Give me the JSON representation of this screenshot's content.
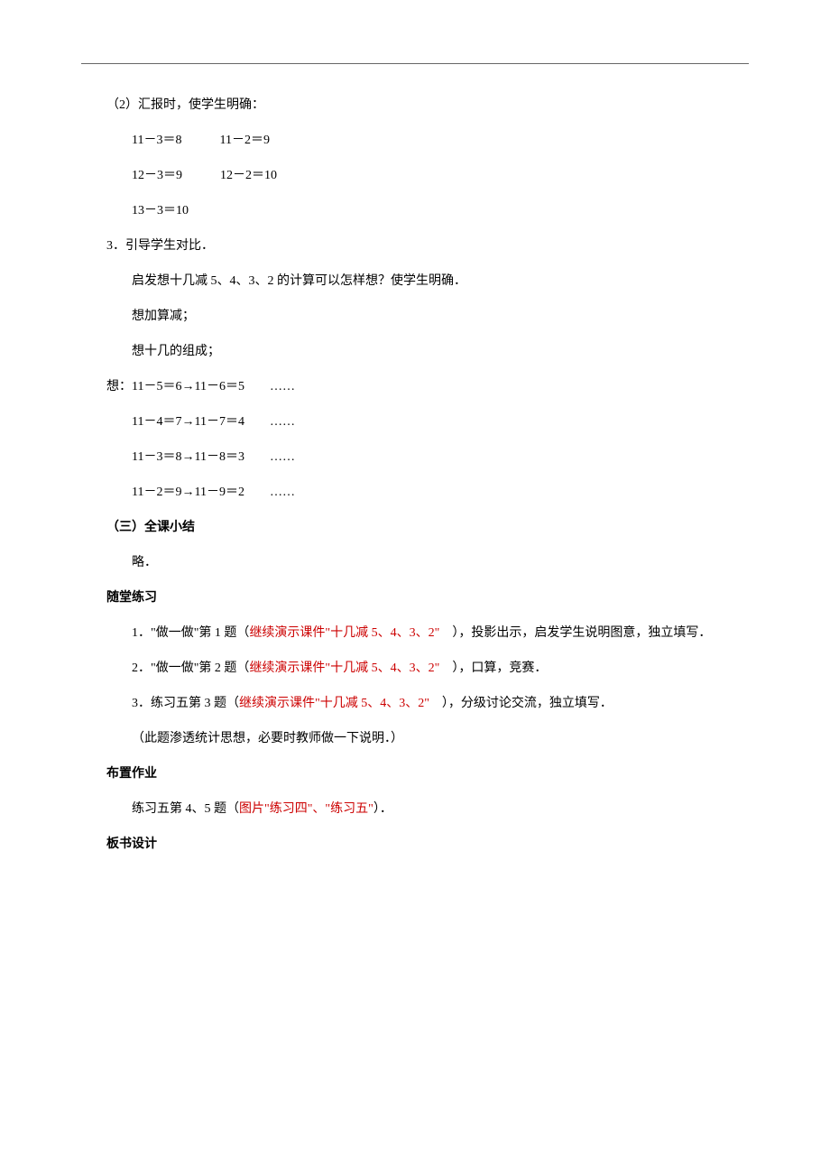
{
  "typography": {
    "font_family": "SimSun",
    "font_size_pt": 10.5,
    "line_spacing": 1.5,
    "text_color": "#000000",
    "red_color": "#cc0000",
    "background_color": "#ffffff",
    "hr_color": "#666666"
  },
  "content": {
    "p1": "（2）汇报时，使学生明确：",
    "p2": "11－3＝8　　　11－2＝9",
    "p3": "12－3＝9　　　12－2＝10",
    "p4": "13－3＝10",
    "p5": "3．引导学生对比．",
    "p6": "启发想十几减 5、4、3、2 的计算可以怎样想？使学生明确．",
    "p7": "想加算减；",
    "p8": "想十几的组成；",
    "p9": "想：11－5＝6→11－6＝5　　……",
    "p10": "11－4＝7→11－7＝4　　……",
    "p11": "11－3＝8→11－8＝3　　……",
    "p12": "11－2＝9→11－9＝2　　……",
    "section3": "（三）全课小结",
    "p13": "略．",
    "practice_header": "随堂练习",
    "p14a": "1．\"做一做\"第 1 题（",
    "p14b": "继续演示课件\"十几减 5、4、3、2\"",
    "p14c": "　），投影出示，启发学生说明图意，独立填写．",
    "p15a": "2．\"做一做\"第 2 题（",
    "p15b": "继续演示课件\"十几减 5、4、3、2\"",
    "p15c": "　），口算，竞赛．",
    "p16a": "3．练习五第 3 题（",
    "p16b": "继续演示课件\"十几减 5、4、3、2\"",
    "p16c": "　），分级讨论交流，独立填写．",
    "p17": "（此题渗透统计思想，必要时教师做一下说明．）",
    "homework_header": "布置作业",
    "p18a": "练习五第 4、5 题（",
    "p18b": "图片\"练习四\"、\"练习五\"",
    "p18c": "）．",
    "board_header": "板书设计"
  }
}
